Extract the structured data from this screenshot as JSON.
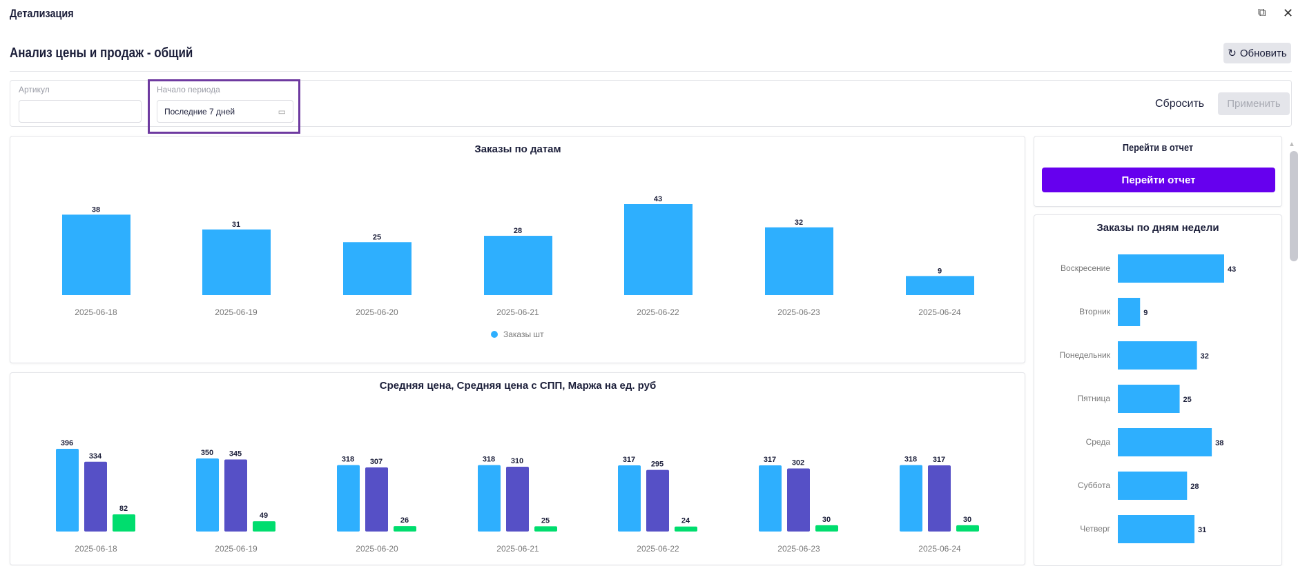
{
  "window": {
    "title": "Детализация",
    "icons": [
      "minimize-window-icon",
      "close-icon"
    ]
  },
  "header": {
    "title": "Анализ цены и продаж - общий",
    "refresh_label": "Обновить"
  },
  "filters": {
    "article_label": "Артикул",
    "article_value": "",
    "period_label": "Начало периода",
    "period_value": "Последние 7 дней",
    "reset_label": "Сбросить",
    "apply_label": "Применить"
  },
  "report": {
    "title": "Перейти в отчет",
    "button_label": "Перейти отчет"
  },
  "chart_data": [
    {
      "type": "bar",
      "title": "Заказы по датам",
      "categories": [
        "2025-06-18",
        "2025-06-19",
        "2025-06-20",
        "2025-06-21",
        "2025-06-22",
        "2025-06-23",
        "2025-06-24"
      ],
      "series": [
        {
          "name": "Заказы шт",
          "values": [
            38,
            31,
            25,
            28,
            43,
            32,
            9
          ],
          "color": "#2eaffe"
        }
      ],
      "legend": "bottom",
      "grid": false
    },
    {
      "type": "bar",
      "title": "Средняя цена, Средняя цена с СПП, Маржа на ед. руб",
      "categories": [
        "2025-06-18",
        "2025-06-19",
        "2025-06-20",
        "2025-06-21",
        "2025-06-22",
        "2025-06-23",
        "2025-06-24"
      ],
      "series": [
        {
          "values": [
            396,
            350,
            318,
            318,
            317,
            317,
            318
          ],
          "color": "#2eaffe"
        },
        {
          "values": [
            334,
            345,
            307,
            310,
            295,
            302,
            317
          ],
          "color": "#5650c6"
        },
        {
          "values": [
            82,
            49,
            26,
            25,
            24,
            30,
            30
          ],
          "color": "#00dd6e"
        }
      ],
      "grid": false
    },
    {
      "type": "bar",
      "orientation": "horizontal",
      "title": "Заказы по дням недели",
      "categories": [
        "Воскресение",
        "Вторник",
        "Понедельник",
        "Пятница",
        "Среда",
        "Суббота",
        "Четверг"
      ],
      "values": [
        43,
        9,
        32,
        25,
        38,
        28,
        31
      ],
      "color": "#2eaffe",
      "grid": false
    }
  ]
}
